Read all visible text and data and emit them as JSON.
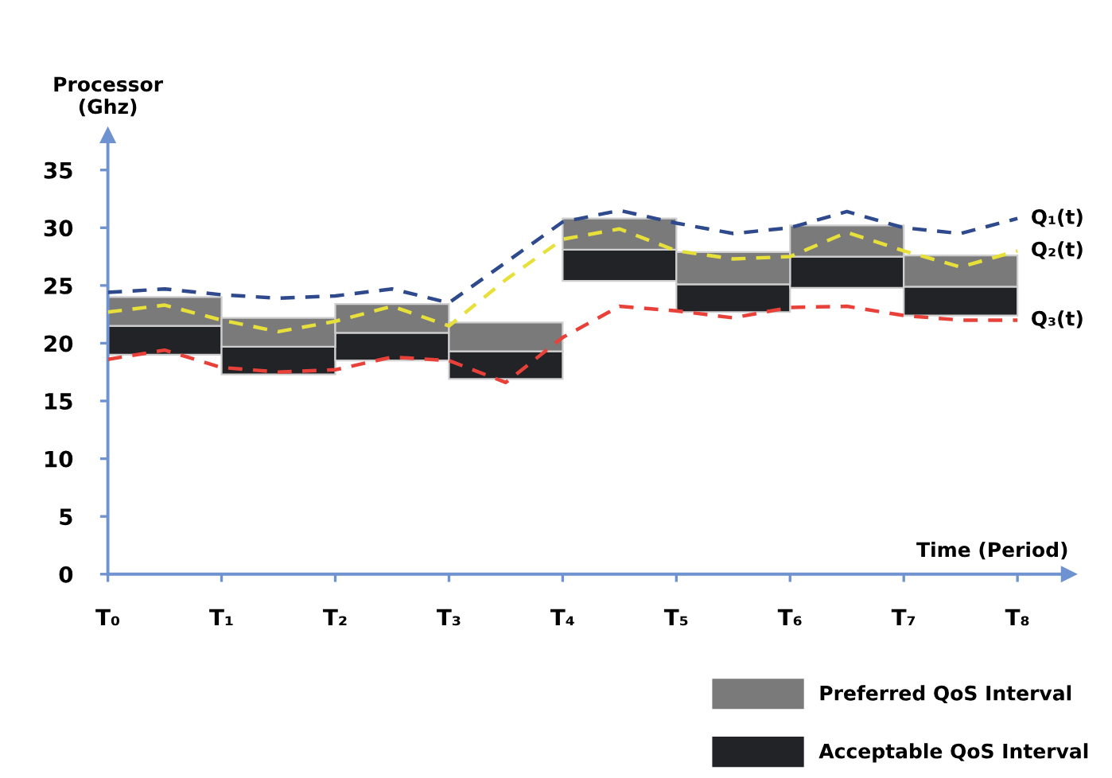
{
  "chart_data": {
    "type": "bar",
    "ylabel": "Processor\n(Ghz)",
    "xlabel": "Time (Period)",
    "categories": [
      "T₀",
      null,
      "T₁",
      null,
      "T₂",
      null,
      "T₃",
      null,
      "T₄",
      null,
      "T₅",
      null,
      "T₆",
      null,
      "T₇",
      null,
      "T₈"
    ],
    "series": [
      {
        "name": "Acceptable QoS Interval",
        "color": "#222326",
        "base": [
          null,
          19.0,
          null,
          17.3,
          null,
          18.5,
          null,
          16.9,
          null,
          25.4,
          null,
          22.7,
          null,
          24.8,
          null,
          22.4,
          null
        ],
        "values": [
          null,
          2.5,
          null,
          2.4,
          null,
          2.4,
          null,
          2.4,
          null,
          2.7,
          null,
          2.4,
          null,
          2.7,
          null,
          2.5,
          null
        ]
      },
      {
        "name": "Preferred QoS Interval",
        "color": "#7a7a7a",
        "base": [
          null,
          21.5,
          null,
          19.7,
          null,
          20.9,
          null,
          19.3,
          null,
          28.1,
          null,
          25.1,
          null,
          27.5,
          null,
          24.9,
          null
        ],
        "values": [
          null,
          2.5,
          null,
          2.5,
          null,
          2.5,
          null,
          2.5,
          null,
          2.7,
          null,
          2.8,
          null,
          2.7,
          null,
          2.7,
          null
        ]
      },
      {
        "name": "Q₁(t)",
        "type": "line",
        "line_style": "dashed",
        "color": "#2e4a8c",
        "values": [
          24.4,
          24.7,
          24.2,
          23.9,
          24.1,
          24.7,
          23.5,
          27.0,
          30.5,
          31.5,
          30.4,
          29.5,
          30.0,
          31.4,
          30.0,
          29.5,
          30.8
        ]
      },
      {
        "name": "Q₂(t)",
        "type": "line",
        "line_style": "dashed",
        "color": "#e8e03a",
        "values": [
          22.7,
          23.3,
          22.0,
          21.0,
          21.9,
          23.2,
          21.5,
          25.5,
          29.0,
          29.9,
          28.0,
          27.3,
          27.5,
          29.6,
          28.0,
          26.6,
          28.0
        ]
      },
      {
        "name": "Q₃(t)",
        "type": "line",
        "line_style": "dashed",
        "color": "#e8413a",
        "values": [
          18.6,
          19.4,
          17.9,
          17.5,
          17.7,
          18.8,
          18.5,
          16.6,
          20.5,
          23.2,
          22.8,
          22.2,
          23.1,
          23.2,
          22.4,
          22.0,
          22.0
        ]
      }
    ],
    "ylim": [
      0,
      38
    ],
    "yticks": [
      0,
      5,
      10,
      15,
      20,
      25,
      30,
      35
    ],
    "grid": false,
    "legend": "bottom right"
  }
}
